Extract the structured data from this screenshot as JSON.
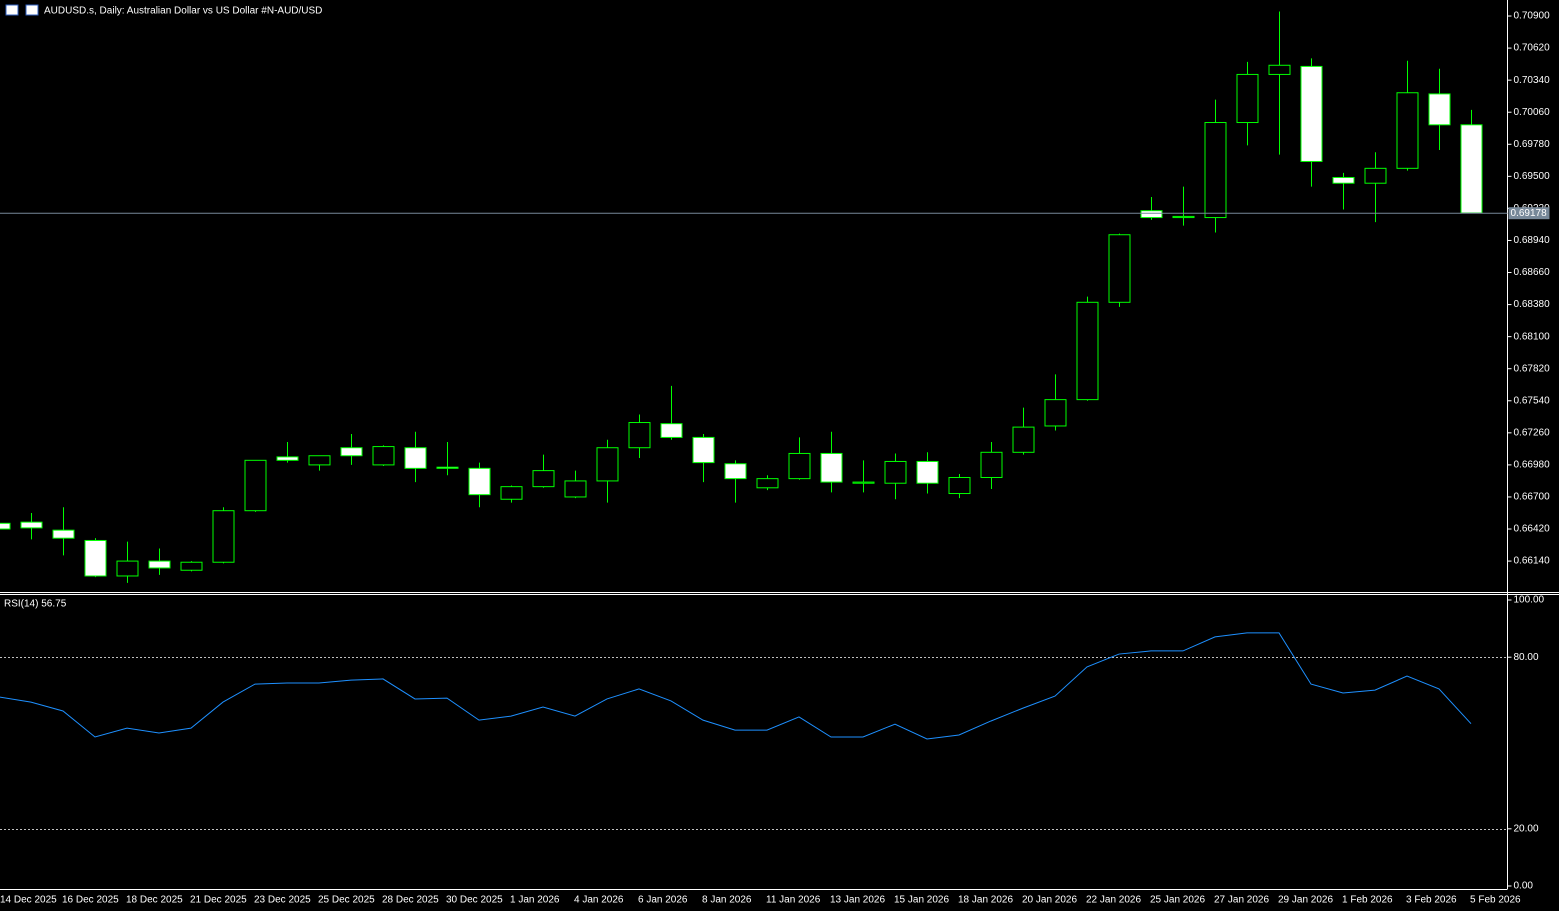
{
  "chart_data": [
    {
      "type": "candlestick",
      "title": "AUDUSD.s, Daily:  Australian Dollar vs US Dollar #N-AUD/USD",
      "categories": [
        "14 Dec 2025",
        null,
        "16 Dec 2025",
        null,
        "18 Dec 2025",
        null,
        "21 Dec 2025",
        null,
        "23 Dec 2025",
        null,
        "25 Dec 2025",
        null,
        "28 Dec 2025",
        null,
        "30 Dec 2025",
        null,
        "1 Jan 2026",
        null,
        "4 Jan 2026",
        null,
        "6 Jan 2026",
        null,
        "8 Jan 2026",
        null,
        "11 Jan 2026",
        null,
        "13 Jan 2026",
        null,
        "15 Jan 2026",
        null,
        "18 Jan 2026",
        null,
        "20 Jan 2026",
        null,
        "22 Jan 2026",
        null,
        "25 Jan 2026",
        null,
        "27 Jan 2026",
        null,
        "29 Jan 2026",
        null,
        "1 Feb 2026",
        null,
        "3 Feb 2026",
        null,
        "5 Feb 2026"
      ],
      "open": [
        0.6647,
        0.6648,
        0.6641,
        0.6632,
        0.6601,
        0.6614,
        0.6606,
        0.6613,
        0.6658,
        0.6705,
        0.6698,
        0.6713,
        0.6698,
        0.6713,
        0.6696,
        0.6695,
        0.6668,
        0.6679,
        0.667,
        0.6684,
        0.6713,
        0.6734,
        0.6722,
        0.6699,
        0.6678,
        0.6686,
        0.6708,
        0.6682,
        0.6682,
        0.6701,
        0.6673,
        0.6687,
        0.6709,
        0.6732,
        0.6755,
        0.684,
        0.692,
        0.6914,
        0.6914,
        0.6997,
        0.7039,
        0.7046,
        0.6949,
        0.6944,
        0.6957,
        0.7022,
        0.6995
      ],
      "high": [
        0.665,
        0.6656,
        0.6661,
        0.6634,
        0.6631,
        0.6625,
        0.6614,
        0.6661,
        0.6702,
        0.6718,
        0.6706,
        0.6725,
        0.6715,
        0.6727,
        0.6718,
        0.67,
        0.668,
        0.6707,
        0.6693,
        0.672,
        0.6742,
        0.6767,
        0.6725,
        0.6702,
        0.6689,
        0.6722,
        0.6727,
        0.6702,
        0.6708,
        0.6709,
        0.669,
        0.6718,
        0.6748,
        0.6777,
        0.6845,
        0.69,
        0.6932,
        0.6941,
        0.7017,
        0.705,
        0.7094,
        0.7053,
        0.6953,
        0.6971,
        0.7051,
        0.7044,
        0.7008
      ],
      "low": [
        0.664,
        0.6633,
        0.6619,
        0.66,
        0.6595,
        0.6602,
        0.6605,
        0.6612,
        0.6657,
        0.67,
        0.6693,
        0.6698,
        0.6697,
        0.6683,
        0.6689,
        0.6661,
        0.6665,
        0.6678,
        0.6669,
        0.6665,
        0.6704,
        0.672,
        0.6683,
        0.6665,
        0.6676,
        0.6685,
        0.6674,
        0.6674,
        0.6668,
        0.6673,
        0.6669,
        0.6677,
        0.6707,
        0.6728,
        0.6754,
        0.6836,
        0.6912,
        0.6907,
        0.6901,
        0.6977,
        0.6969,
        0.6941,
        0.6921,
        0.691,
        0.6955,
        0.6973,
        0.6918
      ],
      "close": [
        0.6642,
        0.6643,
        0.6634,
        0.6601,
        0.6614,
        0.6608,
        0.6613,
        0.6658,
        0.6702,
        0.6702,
        0.6706,
        0.6706,
        0.6714,
        0.6695,
        0.6695,
        0.6672,
        0.6679,
        0.6693,
        0.6684,
        0.6713,
        0.6735,
        0.6722,
        0.67,
        0.6686,
        0.6686,
        0.6708,
        0.6683,
        0.6683,
        0.6701,
        0.6682,
        0.6687,
        0.6709,
        0.6731,
        0.6755,
        0.684,
        0.6899,
        0.6914,
        0.6915,
        0.6997,
        0.7039,
        0.7047,
        0.6963,
        0.6944,
        0.6957,
        0.7023,
        0.6995,
        0.6918
      ],
      "color": "#00ff00",
      "up_fill": "#000000",
      "down_fill": "#ffffff",
      "current_price": 0.69178,
      "current_price_color": "#778899",
      "ylim": [
        0.6587,
        0.7104
      ],
      "yticks": [
        {
          "value": 0.709,
          "label": "0.70900"
        },
        {
          "value": 0.7062,
          "label": "0.70620"
        },
        {
          "value": 0.7034,
          "label": "0.70340"
        },
        {
          "value": 0.7006,
          "label": "0.70060"
        },
        {
          "value": 0.6978,
          "label": "0.69780"
        },
        {
          "value": 0.695,
          "label": "0.69500"
        },
        {
          "value": 0.6922,
          "label": "0.69220"
        },
        {
          "value": 0.6894,
          "label": "0.68940"
        },
        {
          "value": 0.6866,
          "label": "0.68660"
        },
        {
          "value": 0.6838,
          "label": "0.68380"
        },
        {
          "value": 0.681,
          "label": "0.68100"
        },
        {
          "value": 0.6782,
          "label": "0.67820"
        },
        {
          "value": 0.6754,
          "label": "0.67540"
        },
        {
          "value": 0.6726,
          "label": "0.67260"
        },
        {
          "value": 0.6698,
          "label": "0.66980"
        },
        {
          "value": 0.667,
          "label": "0.66700"
        },
        {
          "value": 0.6642,
          "label": "0.66420"
        },
        {
          "value": 0.6614,
          "label": "0.66140"
        }
      ]
    },
    {
      "type": "line",
      "title": "RSI(14) 56.75",
      "values": [
        66.1,
        64.3,
        61.2,
        52.1,
        55.2,
        53.5,
        55.2,
        64.3,
        70.6,
        71.0,
        71.0,
        72.0,
        72.4,
        65.4,
        65.7,
        58.0,
        59.4,
        62.6,
        59.4,
        65.4,
        68.9,
        64.7,
        58.0,
        54.5,
        54.5,
        59.1,
        52.1,
        52.1,
        56.6,
        51.4,
        52.8,
        57.7,
        62.2,
        66.4,
        76.6,
        81.1,
        82.2,
        82.2,
        87.1,
        88.5,
        88.5,
        70.6,
        67.5,
        68.5,
        73.4,
        68.9,
        56.75
      ],
      "color": "#1e90ff",
      "levels": [
        80,
        20
      ],
      "ylim": [
        0,
        100
      ],
      "yticks": [
        {
          "value": 100,
          "label": "100.00"
        },
        {
          "value": 80,
          "label": "80.00"
        },
        {
          "value": 20,
          "label": "20.00"
        },
        {
          "value": 0,
          "label": "0.00"
        }
      ]
    }
  ]
}
